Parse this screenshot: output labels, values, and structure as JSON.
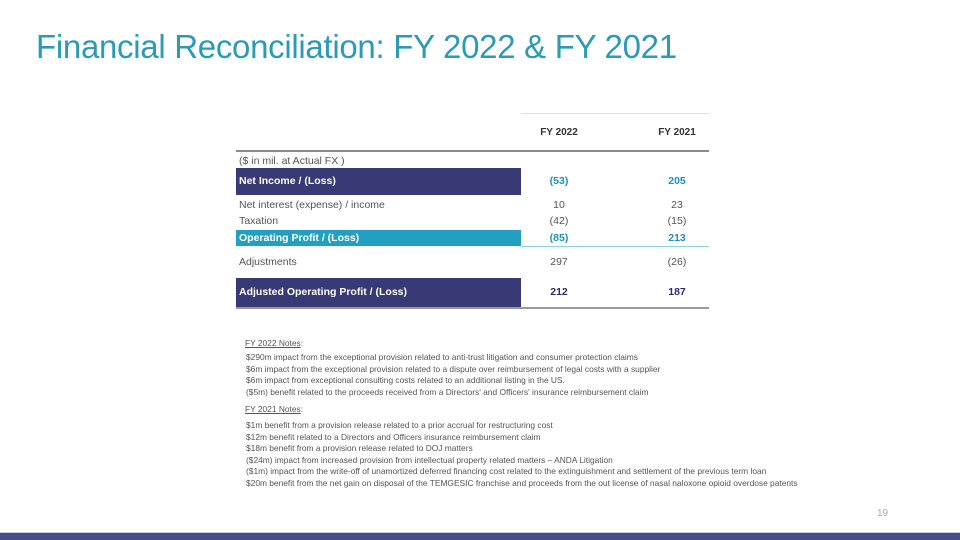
{
  "title": "Financial Reconciliation: FY 2022 & FY 2021",
  "table": {
    "columns": [
      "FY 2022",
      "FY 2021"
    ],
    "unit_note": "($ in mil. at Actual FX )",
    "rows": [
      {
        "label": "Net Income / (Loss)",
        "fy2022": "(53)",
        "fy2021": "205",
        "style": "dark"
      },
      {
        "label": "Net interest (expense) / income",
        "fy2022": "10",
        "fy2021": "23",
        "style": "plain"
      },
      {
        "label": "Taxation",
        "fy2022": "(42)",
        "fy2021": "(15)",
        "style": "plain"
      },
      {
        "label": "Operating Profit / (Loss)",
        "fy2022": "(85)",
        "fy2021": "213",
        "style": "cyan"
      },
      {
        "label": "Adjustments",
        "fy2022": "297",
        "fy2021": "(26)",
        "style": "plain"
      },
      {
        "label": "Adjusted Operating Profit / (Loss)",
        "fy2022": "212",
        "fy2021": "187",
        "style": "dark"
      }
    ]
  },
  "notes_2022": {
    "heading": "FY 2022 Notes",
    "items": [
      "$290m impact from the exceptional provision related to anti-trust litigation and consumer protection claims",
      "$6m impact from the exceptional provision related to a dispute over reimbursement of legal costs with a supplier",
      "$6m impact from exceptional consulting costs related to an additional listing in the US.",
      "($5m) benefit related to the proceeds received from a Directors' and Officers' insurance reimbursement claim"
    ]
  },
  "notes_2021": {
    "heading": "FY 2021 Notes",
    "items": [
      "$1m benefit from a provision release related to a prior accrual for restructuring cost",
      "$12m benefit related to a Directors and Officers insurance reimbursement claim",
      "$18m benefit from a provision release related to DOJ matters",
      "($24m) impact from increased provision from intellectual property related matters – ANDA Litigation",
      "($1m) impact from the write-off of unamortized deferred financing cost related to the extinguishment and settlement of the previous term loan",
      "$20m benefit from the net gain on disposal of the TEMGESIC franchise and proceeds from the out license of nasal naloxone opioid overdose patents"
    ]
  },
  "page_number": "19",
  "colors": {
    "title": "#2a9ab5",
    "dark_band": "#383a75",
    "cyan_band": "#22a0c2",
    "dark_value": "#2a2c66",
    "cyan_value": "#1f8fbf",
    "footer_bar": "#474c86"
  }
}
